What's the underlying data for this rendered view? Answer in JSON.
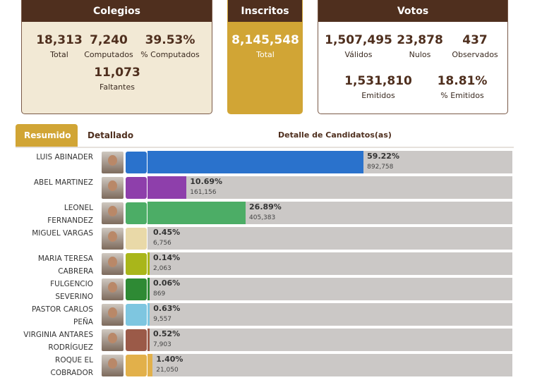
{
  "colegios": {
    "title": "Colegios",
    "total": "18,313",
    "total_label": "Total",
    "computados": "7,240",
    "computados_label": "Computados",
    "pct_computados": "39.53%",
    "pct_computados_label": "% Computados",
    "faltantes": "11,073",
    "faltantes_label": "Faltantes"
  },
  "inscritos": {
    "title": "Inscritos",
    "total": "8,145,548",
    "total_label": "Total"
  },
  "votos": {
    "title": "Votos",
    "validos": "1,507,495",
    "validos_label": "Válidos",
    "nulos": "23,878",
    "nulos_label": "Nulos",
    "observados": "437",
    "observados_label": "Observados",
    "emitidos": "1,531,810",
    "emitidos_label": "Emitidos",
    "pct_emitidos": "18.81%",
    "pct_emitidos_label": "% Emitidos"
  },
  "tabs": {
    "resumido": "Resumido",
    "detallado": "Detallado",
    "heading": "Detalle de Candidatos(as)"
  },
  "candidates": [
    {
      "line1": "LUIS ABINADER",
      "line2": "",
      "pct": "59.22%",
      "pct_value": 59.22,
      "votes": "892,758",
      "color": "#2a72cc",
      "logo": "prm-logo"
    },
    {
      "line1": "ABEL MARTINEZ",
      "line2": "",
      "pct": "10.69%",
      "pct_value": 10.69,
      "votes": "161,156",
      "color": "#8e3fab",
      "logo": "pld-star-logo"
    },
    {
      "line1": "LEONEL",
      "line2": "FERNANDEZ",
      "pct": "26.89%",
      "pct_value": 26.89,
      "votes": "405,383",
      "color": "#4cad66",
      "logo": "fp-logo"
    },
    {
      "line1": "MIGUEL VARGAS",
      "line2": "",
      "pct": "0.45%",
      "pct_value": 0.45,
      "votes": "6,756",
      "color": "#cbc8c6",
      "logo": "prd-logo"
    },
    {
      "line1": "MARIA TERESA",
      "line2": "CABRERA",
      "pct": "0.14%",
      "pct_value": 0.14,
      "votes": "2,063",
      "color": "#a9b61a",
      "logo": "frente-amplio-logo"
    },
    {
      "line1": "FULGENCIO",
      "line2": "SEVERINO",
      "pct": "0.06%",
      "pct_value": 0.06,
      "votes": "869",
      "color": "#2e8a34",
      "logo": "ppt-map-logo"
    },
    {
      "line1": "PASTOR CARLOS",
      "line2": "PEÑA",
      "pct": "0.63%",
      "pct_value": 0.63,
      "votes": "9,557",
      "color": "#7ec6e0",
      "logo": "gens-logo"
    },
    {
      "line1": "VIRGINIA ANTARES",
      "line2": "RODRÍGUEZ",
      "pct": "0.52%",
      "pct_value": 0.52,
      "votes": "7,903",
      "color": "#9b5a48",
      "logo": "opcion-logo"
    },
    {
      "line1": "ROQUE EL",
      "line2": "COBRADOR",
      "pct": "1.40%",
      "pct_value": 1.4,
      "votes": "21,050",
      "color": "#e2b04a",
      "logo": "globe-logo"
    }
  ]
}
